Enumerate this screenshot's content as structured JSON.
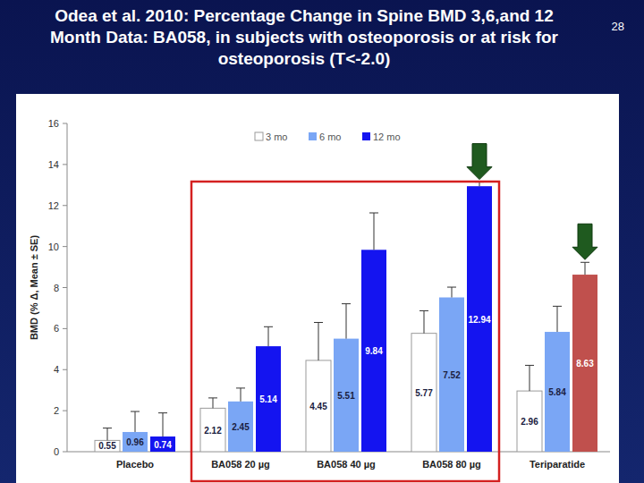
{
  "page_number": "28",
  "chart_data": {
    "type": "bar",
    "title": "Odea et al. 2010: Percentage Change in Spine BMD 3,6,and 12 Month Data: BA058, in subjects with osteoporosis or at risk for osteoporosis (T<-2.0)",
    "y_label": "BMD (% Δ, Mean ± SE)",
    "categories": [
      "Placebo",
      "BA058 20 µg",
      "BA058 40 µg",
      "BA058 80 µg",
      "Teriparatide"
    ],
    "series": [
      {
        "name": "3 mo",
        "color": "#ffffff",
        "values": [
          0.55,
          2.12,
          4.45,
          5.77,
          2.96
        ],
        "errors": [
          0.6,
          0.5,
          1.85,
          1.1,
          1.25
        ]
      },
      {
        "name": "6 mo",
        "color": "#7aa6f5",
        "values": [
          0.96,
          2.45,
          5.51,
          7.52,
          5.84
        ],
        "errors": [
          1.0,
          0.65,
          1.7,
          0.5,
          1.25
        ]
      },
      {
        "name": "12 mo",
        "color": "#1414f0",
        "colors": [
          "#1414f0",
          "#1414f0",
          "#1414f0",
          "#1414f0",
          "#c0504d"
        ],
        "values": [
          0.74,
          5.14,
          9.84,
          12.94,
          8.63
        ],
        "errors": [
          1.15,
          0.95,
          1.8,
          0.2,
          0.6
        ]
      }
    ],
    "ylim": [
      0,
      16
    ],
    "yticks": [
      0,
      2,
      4,
      6,
      8,
      10,
      12,
      14,
      16
    ],
    "data_labels": true,
    "legend": "top",
    "grid": false
  }
}
